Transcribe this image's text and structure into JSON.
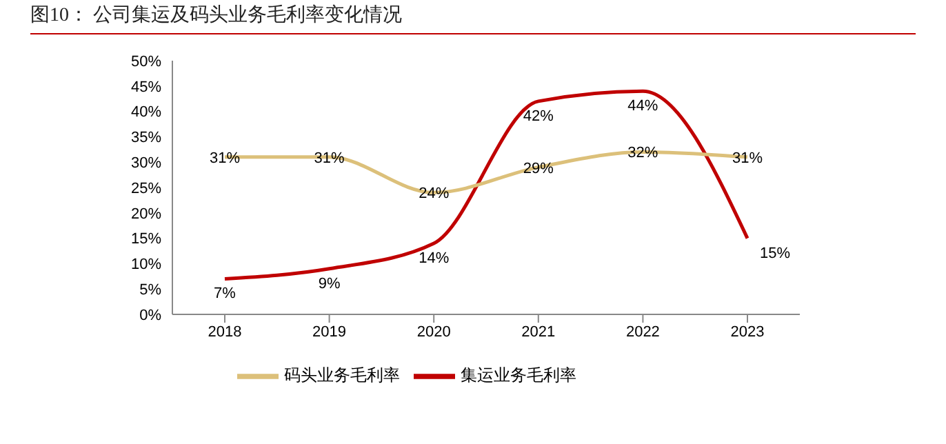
{
  "chart_data": {
    "type": "line",
    "title": "图10：  公司集运及码头业务毛利率变化情况",
    "categories": [
      "2018",
      "2019",
      "2020",
      "2021",
      "2022",
      "2023"
    ],
    "series": [
      {
        "name": "集运业务毛利率",
        "color": "#c00000",
        "values": [
          7,
          9,
          14,
          42,
          44,
          15
        ],
        "value_labels": [
          "7%",
          "9%",
          "14%",
          "42%",
          "44%",
          "15%"
        ]
      },
      {
        "name": "码头业务毛利率",
        "color": "#dcc07a",
        "values": [
          31,
          31,
          24,
          29,
          32,
          31
        ],
        "value_labels": [
          "31%",
          "31%",
          "24%",
          "29%",
          "32%",
          "31%"
        ]
      }
    ],
    "ylim": [
      0,
      50
    ],
    "yticks": [
      {
        "value": 0,
        "label": "0%"
      },
      {
        "value": 5,
        "label": "5%"
      },
      {
        "value": 10,
        "label": "10%"
      },
      {
        "value": 15,
        "label": "15%"
      },
      {
        "value": 20,
        "label": "20%"
      },
      {
        "value": 25,
        "label": "25%"
      },
      {
        "value": 30,
        "label": "30%"
      },
      {
        "value": 35,
        "label": "35%"
      },
      {
        "value": 40,
        "label": "40%"
      },
      {
        "value": 45,
        "label": "45%"
      },
      {
        "value": 50,
        "label": "50%"
      }
    ],
    "legend": "bottom",
    "grid": false,
    "marker": "none",
    "line_style": "solid"
  }
}
